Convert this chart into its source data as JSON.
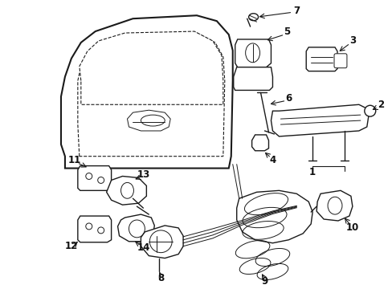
{
  "background_color": "#ffffff",
  "line_color": "#1a1a1a",
  "text_color": "#111111",
  "label_fontsize": 8.5
}
